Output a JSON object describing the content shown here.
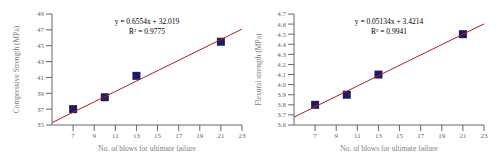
{
  "chart_data": [
    {
      "type": "scatter",
      "xlabel": "No. of blows for ultimate failure",
      "ylabel": "Compressive Strength (MPa)",
      "annotations": [
        "y = 0.6554x + 32.019",
        "R² = 0.9775"
      ],
      "xlim": [
        5,
        23
      ],
      "ylim": [
        35,
        49
      ],
      "xticks": [
        7,
        9,
        11,
        13,
        15,
        17,
        19,
        21,
        23
      ],
      "yticks": [
        35,
        37,
        39,
        41,
        43,
        45,
        47,
        49
      ],
      "series": [
        {
          "type": "scatter",
          "color": "#1c1c5e",
          "marker": "square",
          "x": [
            7,
            10,
            13,
            21
          ],
          "values": [
            37.0,
            38.5,
            41.2,
            45.5
          ]
        },
        {
          "type": "line",
          "color": "#aa2222",
          "x": [
            5,
            23
          ],
          "values": [
            35.296,
            47.0932
          ]
        }
      ]
    },
    {
      "type": "scatter",
      "xlabel": "No. of blows for ultimate failure",
      "ylabel": "Flexural strength (MPa)",
      "annotations": [
        "y = 0.05134x + 3.4214",
        "R² = 0.9941"
      ],
      "xlim": [
        5,
        23
      ],
      "ylim": [
        3.6,
        4.7
      ],
      "xticks": [
        7,
        9,
        11,
        13,
        15,
        17,
        19,
        21,
        23
      ],
      "yticks": [
        3.6,
        3.7,
        3.8,
        3.9,
        {
          "value": 4,
          "label": "4.0"
        },
        4.1,
        4.2,
        4.3,
        4.4,
        4.5,
        4.6,
        4.7
      ],
      "series": [
        {
          "type": "scatter",
          "color": "#1c1c5e",
          "marker": "square",
          "x": [
            7,
            10,
            13,
            21
          ],
          "values": [
            3.8,
            3.9,
            4.1,
            4.5
          ]
        },
        {
          "type": "line",
          "color": "#aa2222",
          "x": [
            5,
            23
          ],
          "values": [
            3.6781,
            4.60222
          ]
        }
      ]
    }
  ]
}
